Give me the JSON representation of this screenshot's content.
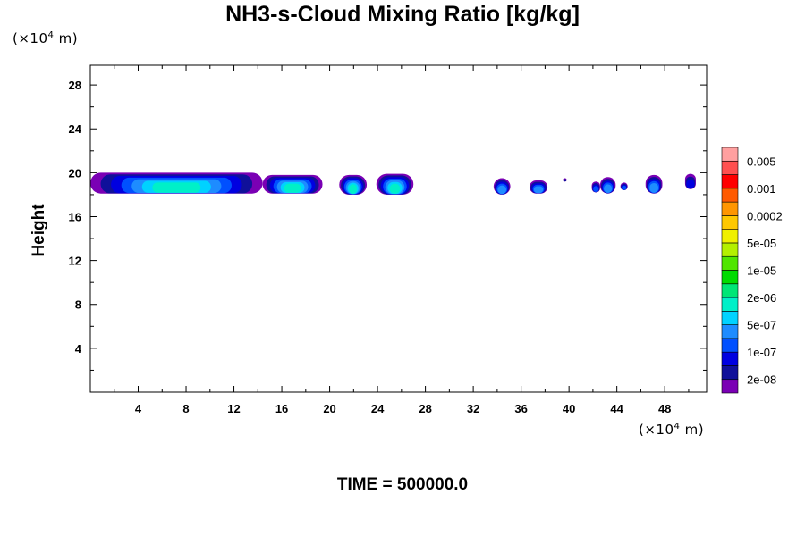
{
  "chart_data": {
    "type": "contour",
    "title": "NH3-s-Cloud Mixing Ratio [kg/kg]",
    "ylabel": "Height",
    "xlabel": "",
    "x_unit": {
      "prefix": "(×10",
      "exp": "4",
      "suffix": " m)"
    },
    "y_unit": {
      "prefix": "(×10",
      "exp": "4",
      "suffix": " m)"
    },
    "time_label": "TIME = 500000.0",
    "xlim": [
      0,
      51.5
    ],
    "ylim": [
      0,
      29.8
    ],
    "x_ticks": [
      4,
      8,
      12,
      16,
      20,
      24,
      28,
      32,
      36,
      40,
      44,
      48
    ],
    "y_ticks": [
      4,
      8,
      12,
      16,
      20,
      24,
      28
    ],
    "colorbar": {
      "colors": [
        "#7a00b4",
        "#10109a",
        "#0000e0",
        "#0050ff",
        "#1e8cff",
        "#00d2ff",
        "#00f0c8",
        "#00e676",
        "#00dc00",
        "#50e600",
        "#b4f000",
        "#f0f000",
        "#ffc800",
        "#ff9600",
        "#ff5a00",
        "#ff0000",
        "#ff5050",
        "#ffa0a0"
      ],
      "labels": [
        "2e-08",
        "1e-07",
        "5e-07",
        "2e-06",
        "1e-05",
        "5e-05",
        "0.0002",
        "0.001",
        "0.005"
      ]
    },
    "cloud_regions": [
      {
        "x": [
          0.0,
          14.4
        ],
        "y": [
          18.1,
          20.0
        ],
        "max_level": 7
      },
      {
        "x": [
          14.4,
          19.4
        ],
        "y": [
          18.1,
          19.8
        ],
        "max_level": 7
      },
      {
        "x": [
          20.8,
          23.1
        ],
        "y": [
          18.0,
          19.8
        ],
        "max_level": 7
      },
      {
        "x": [
          23.9,
          27.0
        ],
        "y": [
          18.0,
          19.9
        ],
        "max_level": 7
      },
      {
        "x": [
          33.7,
          35.1
        ],
        "y": [
          18.0,
          19.5
        ],
        "max_level": 5
      },
      {
        "x": [
          36.7,
          38.2
        ],
        "y": [
          18.1,
          19.3
        ],
        "max_level": 5
      },
      {
        "x": [
          39.5,
          39.8
        ],
        "y": [
          19.2,
          19.5
        ],
        "max_level": 2
      },
      {
        "x": [
          41.9,
          42.6
        ],
        "y": [
          18.2,
          19.2
        ],
        "max_level": 4
      },
      {
        "x": [
          42.6,
          43.9
        ],
        "y": [
          18.1,
          19.6
        ],
        "max_level": 5
      },
      {
        "x": [
          44.3,
          44.9
        ],
        "y": [
          18.4,
          19.1
        ],
        "max_level": 4
      },
      {
        "x": [
          46.4,
          47.8
        ],
        "y": [
          18.1,
          19.8
        ],
        "max_level": 5
      },
      {
        "x": [
          49.7,
          50.6
        ],
        "y": [
          18.5,
          19.9
        ],
        "max_level": 3
      }
    ]
  }
}
